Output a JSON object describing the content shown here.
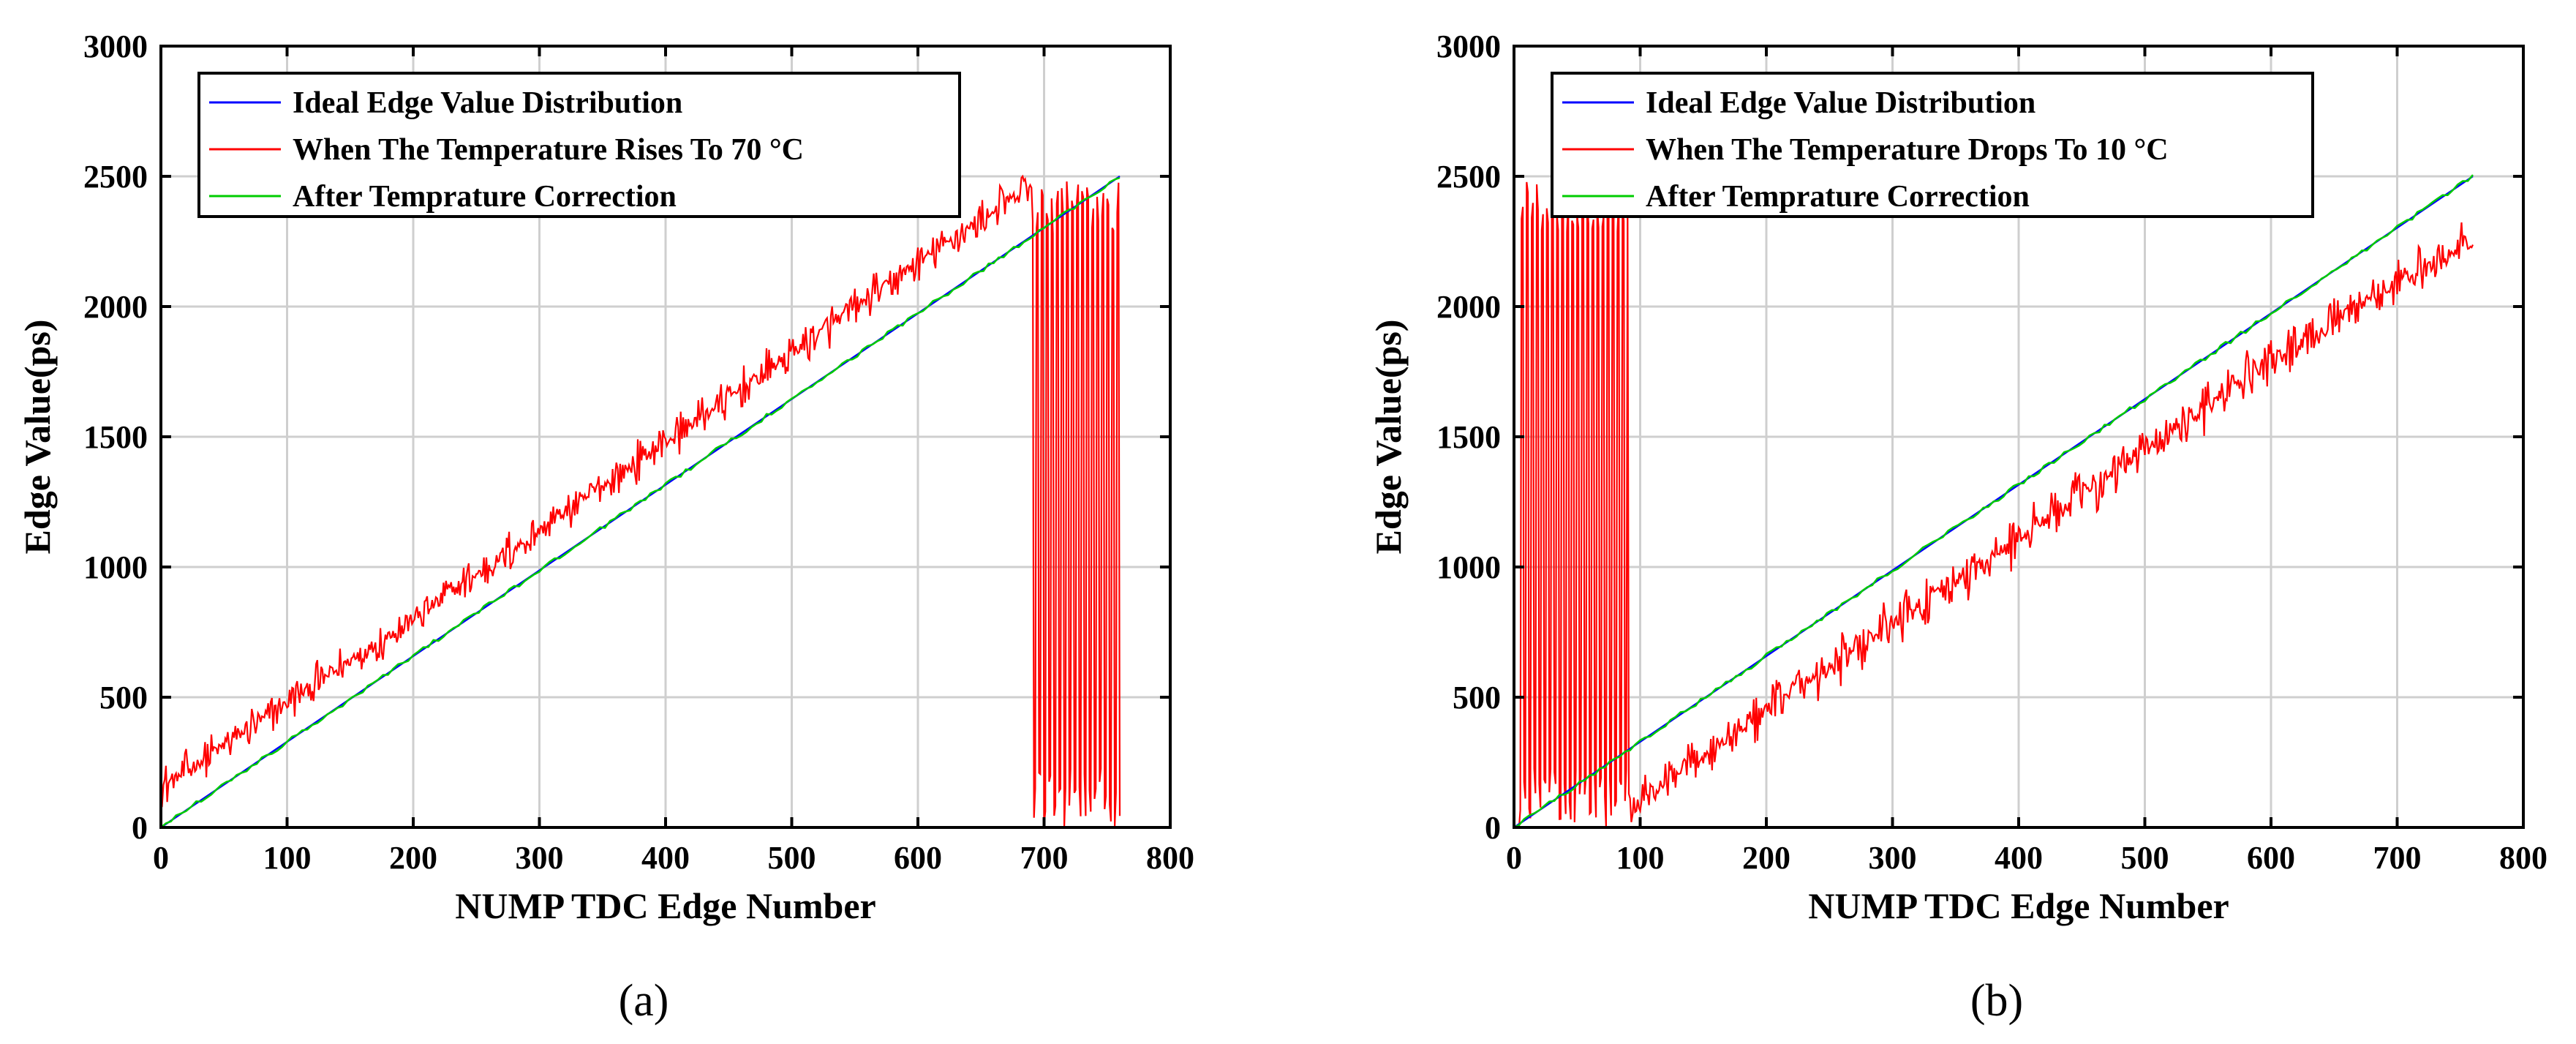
{
  "figure": {
    "colors": {
      "ideal": "#0000ff",
      "measured": "#ff0000",
      "corrected": "#00cc00",
      "grid": "#cfcfcf",
      "axis": "#000000"
    }
  },
  "chart_data": [
    {
      "type": "line",
      "panel_label": "(a)",
      "title": "",
      "xlabel": "NUMP TDC Edge Number",
      "ylabel": "Edge Value(ps)",
      "xlim": [
        0,
        800
      ],
      "ylim": [
        0,
        3000
      ],
      "xticks": [
        0,
        100,
        200,
        300,
        400,
        500,
        600,
        700,
        800
      ],
      "yticks": [
        0,
        500,
        1000,
        1500,
        2000,
        2500,
        3000
      ],
      "grid": true,
      "legend_position": "top-left",
      "series": [
        {
          "name": "Ideal Edge Value Distribution",
          "color": "#0000ff",
          "x": [
            0,
            760
          ],
          "y": [
            0,
            2500
          ]
        },
        {
          "name": "When The Temperature Rises To 70 °C",
          "color": "#ff0000",
          "trend": {
            "x": [
              0,
              100,
              200,
              300,
              400,
              500,
              600,
              680
            ],
            "y": [
              150,
              480,
              800,
              1140,
              1480,
              1820,
              2170,
              2430
            ]
          },
          "noise_amplitude_ps": 90,
          "wraparound_region": {
            "x": [
              690,
              760
            ],
            "low": 0,
            "high": 2480
          }
        },
        {
          "name": "After Temprature Correction",
          "color": "#00cc00",
          "x": [
            0,
            760
          ],
          "y": [
            0,
            2500
          ]
        }
      ]
    },
    {
      "type": "line",
      "panel_label": "(b)",
      "title": "",
      "xlabel": "NUMP TDC Edge Number",
      "ylabel": "Edge Value(ps)",
      "xlim": [
        0,
        800
      ],
      "ylim": [
        0,
        3000
      ],
      "xticks": [
        0,
        100,
        200,
        300,
        400,
        500,
        600,
        700,
        800
      ],
      "yticks": [
        0,
        500,
        1000,
        1500,
        2000,
        2500,
        3000
      ],
      "grid": true,
      "legend_position": "top-left",
      "series": [
        {
          "name": "Ideal Edge Value Distribution",
          "color": "#0000ff",
          "x": [
            0,
            760
          ],
          "y": [
            0,
            2500
          ]
        },
        {
          "name": "When The Temperature Drops To 10 °C",
          "color": "#ff0000",
          "trend": {
            "x": [
              90,
              200,
              300,
              400,
              500,
              600,
              700,
              760
            ],
            "y": [
              60,
              450,
              780,
              1110,
              1450,
              1790,
              2090,
              2250
            ]
          },
          "noise_amplitude_ps": 110,
          "wraparound_region": {
            "x": [
              5,
              90
            ],
            "low": 0,
            "high": 2480
          }
        },
        {
          "name": "After Temprature Correction",
          "color": "#00cc00",
          "x": [
            0,
            760
          ],
          "y": [
            0,
            2500
          ]
        }
      ]
    }
  ]
}
